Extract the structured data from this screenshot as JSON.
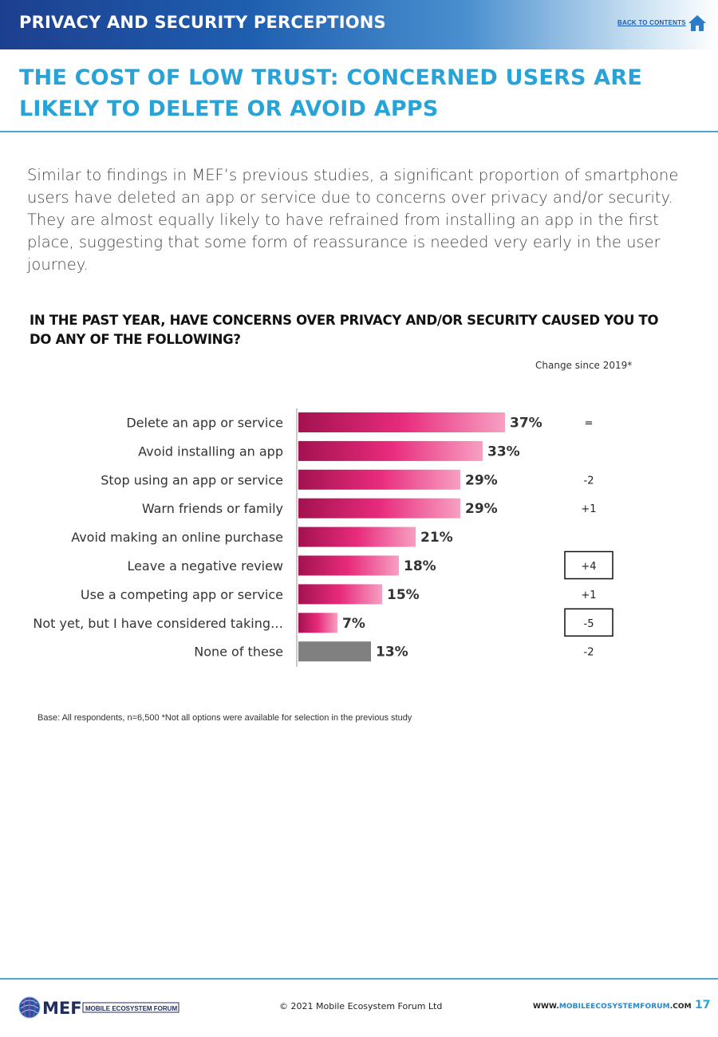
{
  "header": {
    "section_title": "PRIVACY AND SECURITY PERCEPTIONS",
    "back_link": "BACK TO CONTENTS",
    "home_icon": "home-icon"
  },
  "title": {
    "line1": "THE COST OF LOW TRUST: CONCERNED USERS ARE",
    "line2": "LIKELY TO DELETE OR AVOID APPS"
  },
  "intro": "Similar to findings in MEF’s previous studies, a significant proportion of smartphone users have deleted an app or service due to concerns over privacy and/or security. They are almost equally likely to have refrained from installing an app in the first place, suggesting that some form of reassurance is needed very early in the user journey.",
  "chart_data": {
    "type": "bar",
    "orientation": "horizontal",
    "title": "IN THE PAST YEAR, HAVE CONCERNS OVER PRIVACY AND/OR SECURITY CAUSED YOU TO DO ANY OF THE FOLLOWING?",
    "change_header": "Change since 2019*",
    "categories": [
      "Delete an app or service",
      "Avoid installing an app",
      "Stop using an app or service",
      "Warn friends or family",
      "Avoid making an online purchase",
      "Leave a negative review",
      "Use a competing app or service",
      "Not yet, but I have considered taking…",
      "None of these"
    ],
    "values": [
      37,
      33,
      29,
      29,
      21,
      18,
      15,
      7,
      13
    ],
    "value_labels": [
      "37%",
      "33%",
      "29%",
      "29%",
      "21%",
      "18%",
      "15%",
      "7%",
      "13%"
    ],
    "changes": [
      "=",
      "",
      "-2",
      "+1",
      "",
      "+4",
      "+1",
      "-5",
      "-2"
    ],
    "boxed_changes": [
      false,
      false,
      false,
      false,
      false,
      true,
      false,
      true,
      false
    ],
    "xlim": [
      0,
      37
    ],
    "grid": false,
    "colors": {
      "gradient_dark": "#a3124f",
      "gradient_mid": "#e82b7c",
      "gradient_light": "#f7a0c2",
      "none_bar": "#808080",
      "axis": "#c9c9c9"
    }
  },
  "base_note": "Base: All respondents, n=6,500  *Not all options were available for selection in the previous study",
  "footer": {
    "logo_text": "MEF",
    "logo_sub": "MOBILE ECOSYSTEM FORUM",
    "copyright": "© 2021 Mobile Ecosystem Forum Ltd",
    "site_pre": "WWW.",
    "site_hl": "MOBILEECOSYSTEMFORUM",
    "site_post": ".COM",
    "page_number": "17"
  }
}
